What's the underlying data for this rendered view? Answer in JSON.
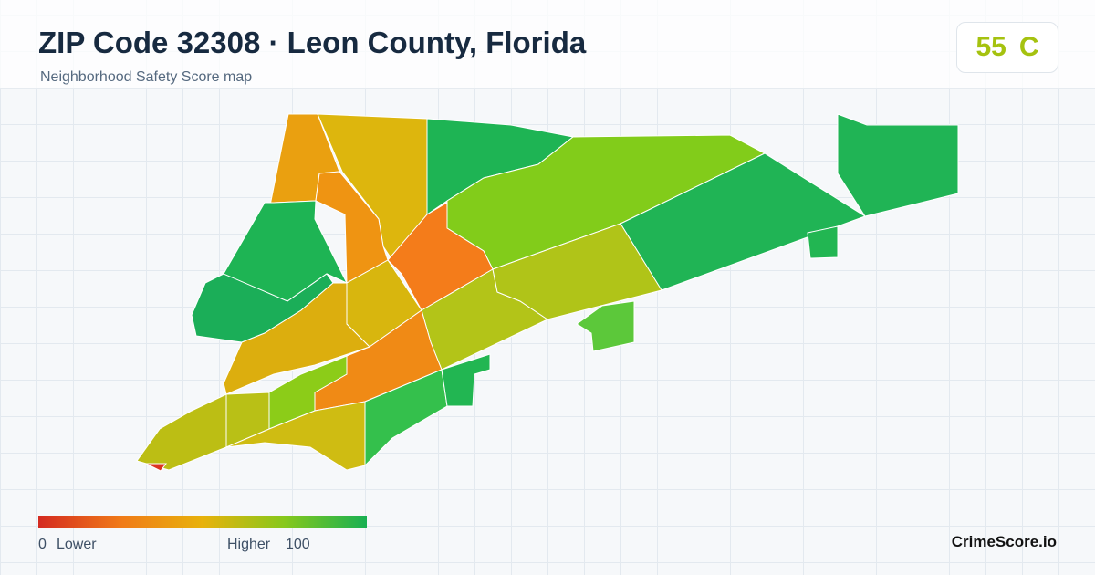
{
  "header": {
    "title": "ZIP Code 32308 · Leon County, Florida",
    "subtitle": "Neighborhood Safety Score map"
  },
  "score": {
    "value": "55",
    "grade": "C"
  },
  "legend": {
    "min": 0,
    "min_label": "Lower",
    "max_label": "Higher",
    "max": 100
  },
  "footer": {
    "brand": "CrimeScore.io"
  }
}
